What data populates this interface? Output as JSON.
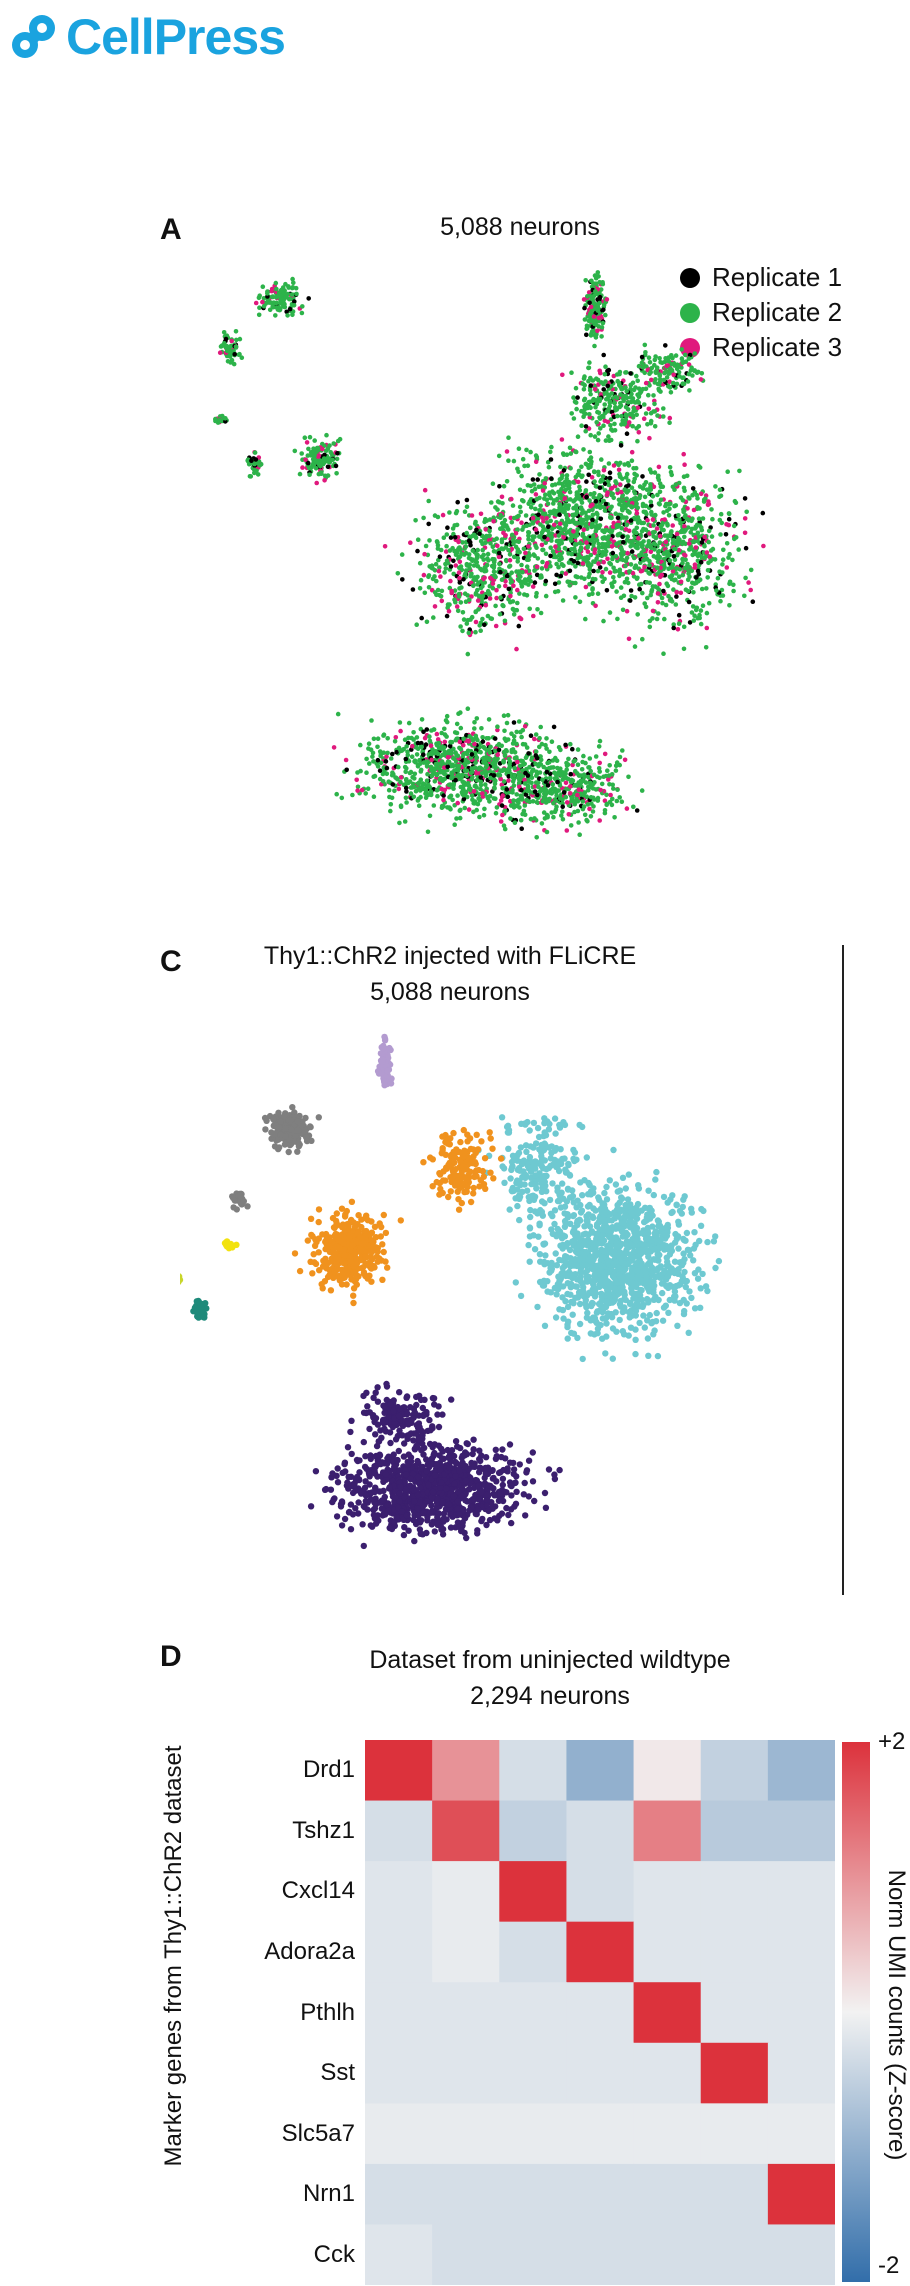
{
  "logo": {
    "text": "CellPress",
    "color": "#1aa3df"
  },
  "panel_a": {
    "letter": "A",
    "title": "5,088 neurons"
  },
  "panel_c": {
    "letter": "C",
    "title_line1": "Thy1::ChR2 injected with FLiCRE",
    "title_line2": "5,088 neurons"
  },
  "panel_d": {
    "letter": "D",
    "title_line1": "Dataset from uninjected wildtype",
    "title_line2": "2,294 neurons",
    "ylabel": "Marker genes from Thy1::ChR2 dataset",
    "colorbar_label": "Norm UMI counts (Z-score)",
    "cbar_max": "+2",
    "cbar_min": "-2"
  },
  "chart_data": [
    {
      "type": "scatter",
      "title": "5,088 neurons",
      "legend": "top-right",
      "grid": false,
      "series": [
        {
          "name": "Replicate 1",
          "color": "#000000"
        },
        {
          "name": "Replicate 2",
          "color": "#2db34a"
        },
        {
          "name": "Replicate 3",
          "color": "#e0197d"
        }
      ]
    },
    {
      "type": "scatter",
      "title": "Thy1::ChR2 injected with FLiCRE\n5,088 neurons",
      "grid": false,
      "clusters": [
        {
          "color": "#6ec9d1"
        },
        {
          "color": "#3b1f6e"
        },
        {
          "color": "#f0921e"
        },
        {
          "color": "#7f7f7f"
        },
        {
          "color": "#b39bd0"
        },
        {
          "color": "#1e8a7a"
        },
        {
          "color": "#c8d62a"
        },
        {
          "color": "#f2e20f"
        }
      ]
    },
    {
      "type": "heatmap",
      "title": "Dataset from uninjected wildtype\n2,294 neurons",
      "ylabel": "Marker genes from Thy1::ChR2 dataset",
      "colorbar_label": "Norm UMI counts (Z-score)",
      "zlim": [
        -2,
        2
      ],
      "rows": [
        "Drd1",
        "Tshz1",
        "Cxcl14",
        "Adora2a",
        "Pthlh",
        "Sst",
        "Slc5a7",
        "Nrn1",
        "Cck"
      ],
      "n_cols": 7,
      "values": [
        [
          2.0,
          1.0,
          -0.3,
          -1.0,
          0.1,
          -0.5,
          -0.9
        ],
        [
          -0.3,
          1.7,
          -0.5,
          -0.3,
          1.2,
          -0.6,
          -0.6
        ],
        [
          -0.2,
          -0.1,
          2.0,
          -0.3,
          -0.2,
          -0.2,
          -0.2
        ],
        [
          -0.2,
          -0.1,
          -0.3,
          2.0,
          -0.2,
          -0.2,
          -0.2
        ],
        [
          -0.2,
          -0.2,
          -0.2,
          -0.2,
          2.0,
          -0.2,
          -0.2
        ],
        [
          -0.2,
          -0.2,
          -0.2,
          -0.2,
          -0.2,
          2.0,
          -0.2
        ],
        [
          -0.1,
          -0.1,
          -0.1,
          -0.1,
          -0.1,
          -0.1,
          -0.1
        ],
        [
          -0.3,
          -0.3,
          -0.3,
          -0.3,
          -0.3,
          -0.3,
          2.0
        ],
        [
          -0.2,
          -0.3,
          -0.3,
          -0.3,
          -0.3,
          -0.3,
          -0.3
        ]
      ]
    }
  ]
}
